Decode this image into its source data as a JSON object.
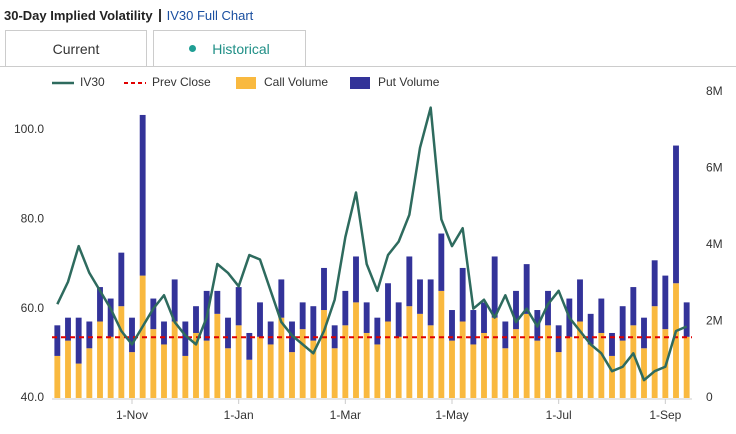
{
  "header": {
    "title": "30-Day Implied Volatility",
    "link": "IV30 Full Chart"
  },
  "tabs": [
    "Current",
    "Historical"
  ],
  "chart_data": {
    "type": "line-bar",
    "categories": [
      null,
      null,
      null,
      null,
      null,
      null,
      null,
      "1-Nov",
      null,
      null,
      null,
      null,
      null,
      null,
      null,
      null,
      null,
      "1-Jan",
      null,
      null,
      null,
      null,
      null,
      null,
      null,
      null,
      null,
      "1-Mar",
      null,
      null,
      null,
      null,
      null,
      null,
      null,
      null,
      null,
      "1-May",
      null,
      null,
      null,
      null,
      null,
      null,
      null,
      null,
      null,
      "1-Jul",
      null,
      null,
      null,
      null,
      null,
      null,
      null,
      null,
      null,
      "1-Sep",
      null,
      null
    ],
    "series": [
      {
        "name": "IV30",
        "type": "line",
        "axis": "y",
        "color": "#2e6b5e",
        "values": [
          61,
          66,
          74,
          68,
          64,
          60,
          55,
          52,
          56,
          60,
          63,
          57,
          54,
          52,
          58,
          70,
          68,
          65,
          72,
          71,
          64,
          57,
          54,
          52,
          50,
          55,
          62,
          76,
          86,
          70,
          64,
          72,
          75,
          81,
          96,
          105,
          80,
          74,
          78,
          60,
          62,
          58,
          63,
          57,
          60,
          56,
          61,
          64,
          58,
          55,
          52,
          50,
          46,
          47,
          50,
          44,
          46,
          47,
          55,
          56
        ]
      },
      {
        "name": "Call Volume",
        "type": "bar",
        "axis": "y2",
        "color": "#f9b93f",
        "values": [
          1100000,
          1500000,
          900000,
          1300000,
          2000000,
          1600000,
          2400000,
          1200000,
          3200000,
          1800000,
          1400000,
          2000000,
          1100000,
          1700000,
          1500000,
          2200000,
          1300000,
          1900000,
          1000000,
          1600000,
          1400000,
          2100000,
          1200000,
          1800000,
          1500000,
          2300000,
          1300000,
          1900000,
          2500000,
          1700000,
          1400000,
          2000000,
          1600000,
          2400000,
          2200000,
          1900000,
          2800000,
          1500000,
          2000000,
          1400000,
          1700000,
          2100000,
          1300000,
          1800000,
          2200000,
          1500000,
          1900000,
          1200000,
          1600000,
          2000000,
          1400000,
          1700000,
          1100000,
          1500000,
          1900000,
          1300000,
          2400000,
          1800000,
          3000000,
          1600000
        ]
      },
      {
        "name": "Put Volume",
        "type": "bar",
        "axis": "y2",
        "stacked": true,
        "color": "#333399",
        "values": [
          800000,
          600000,
          1200000,
          700000,
          900000,
          1000000,
          1400000,
          900000,
          4200000,
          800000,
          600000,
          1100000,
          900000,
          700000,
          1300000,
          600000,
          800000,
          1000000,
          700000,
          900000,
          600000,
          1000000,
          800000,
          700000,
          900000,
          1100000,
          600000,
          900000,
          1200000,
          800000,
          700000,
          1000000,
          900000,
          1300000,
          900000,
          1200000,
          1500000,
          800000,
          1400000,
          900000,
          800000,
          1600000,
          700000,
          1000000,
          1300000,
          800000,
          900000,
          700000,
          1000000,
          1100000,
          800000,
          900000,
          600000,
          900000,
          1000000,
          800000,
          1200000,
          1400000,
          3600000,
          900000
        ]
      }
    ],
    "reference": {
      "name": "Prev Close",
      "value": 53.6,
      "color": "#e00000"
    },
    "legend_order": [
      "IV30",
      "Prev Close",
      "Call Volume",
      "Put Volume"
    ],
    "ylim": [
      40,
      108.5
    ],
    "yticks": [
      {
        "value": 40,
        "label": "40.0"
      },
      {
        "value": 60,
        "label": "60.0"
      },
      {
        "value": 80,
        "label": "80.0"
      },
      {
        "value": 100,
        "label": "100.0"
      }
    ],
    "y2lim": [
      0,
      8000000
    ],
    "y2ticks": [
      0,
      {
        "value": 2000000,
        "label": "2M"
      },
      {
        "value": 4000000,
        "label": "4M"
      },
      {
        "value": 6000000,
        "label": "6M"
      },
      {
        "value": 8000000,
        "label": "8M"
      }
    ],
    "grid": false,
    "legend": "top"
  }
}
